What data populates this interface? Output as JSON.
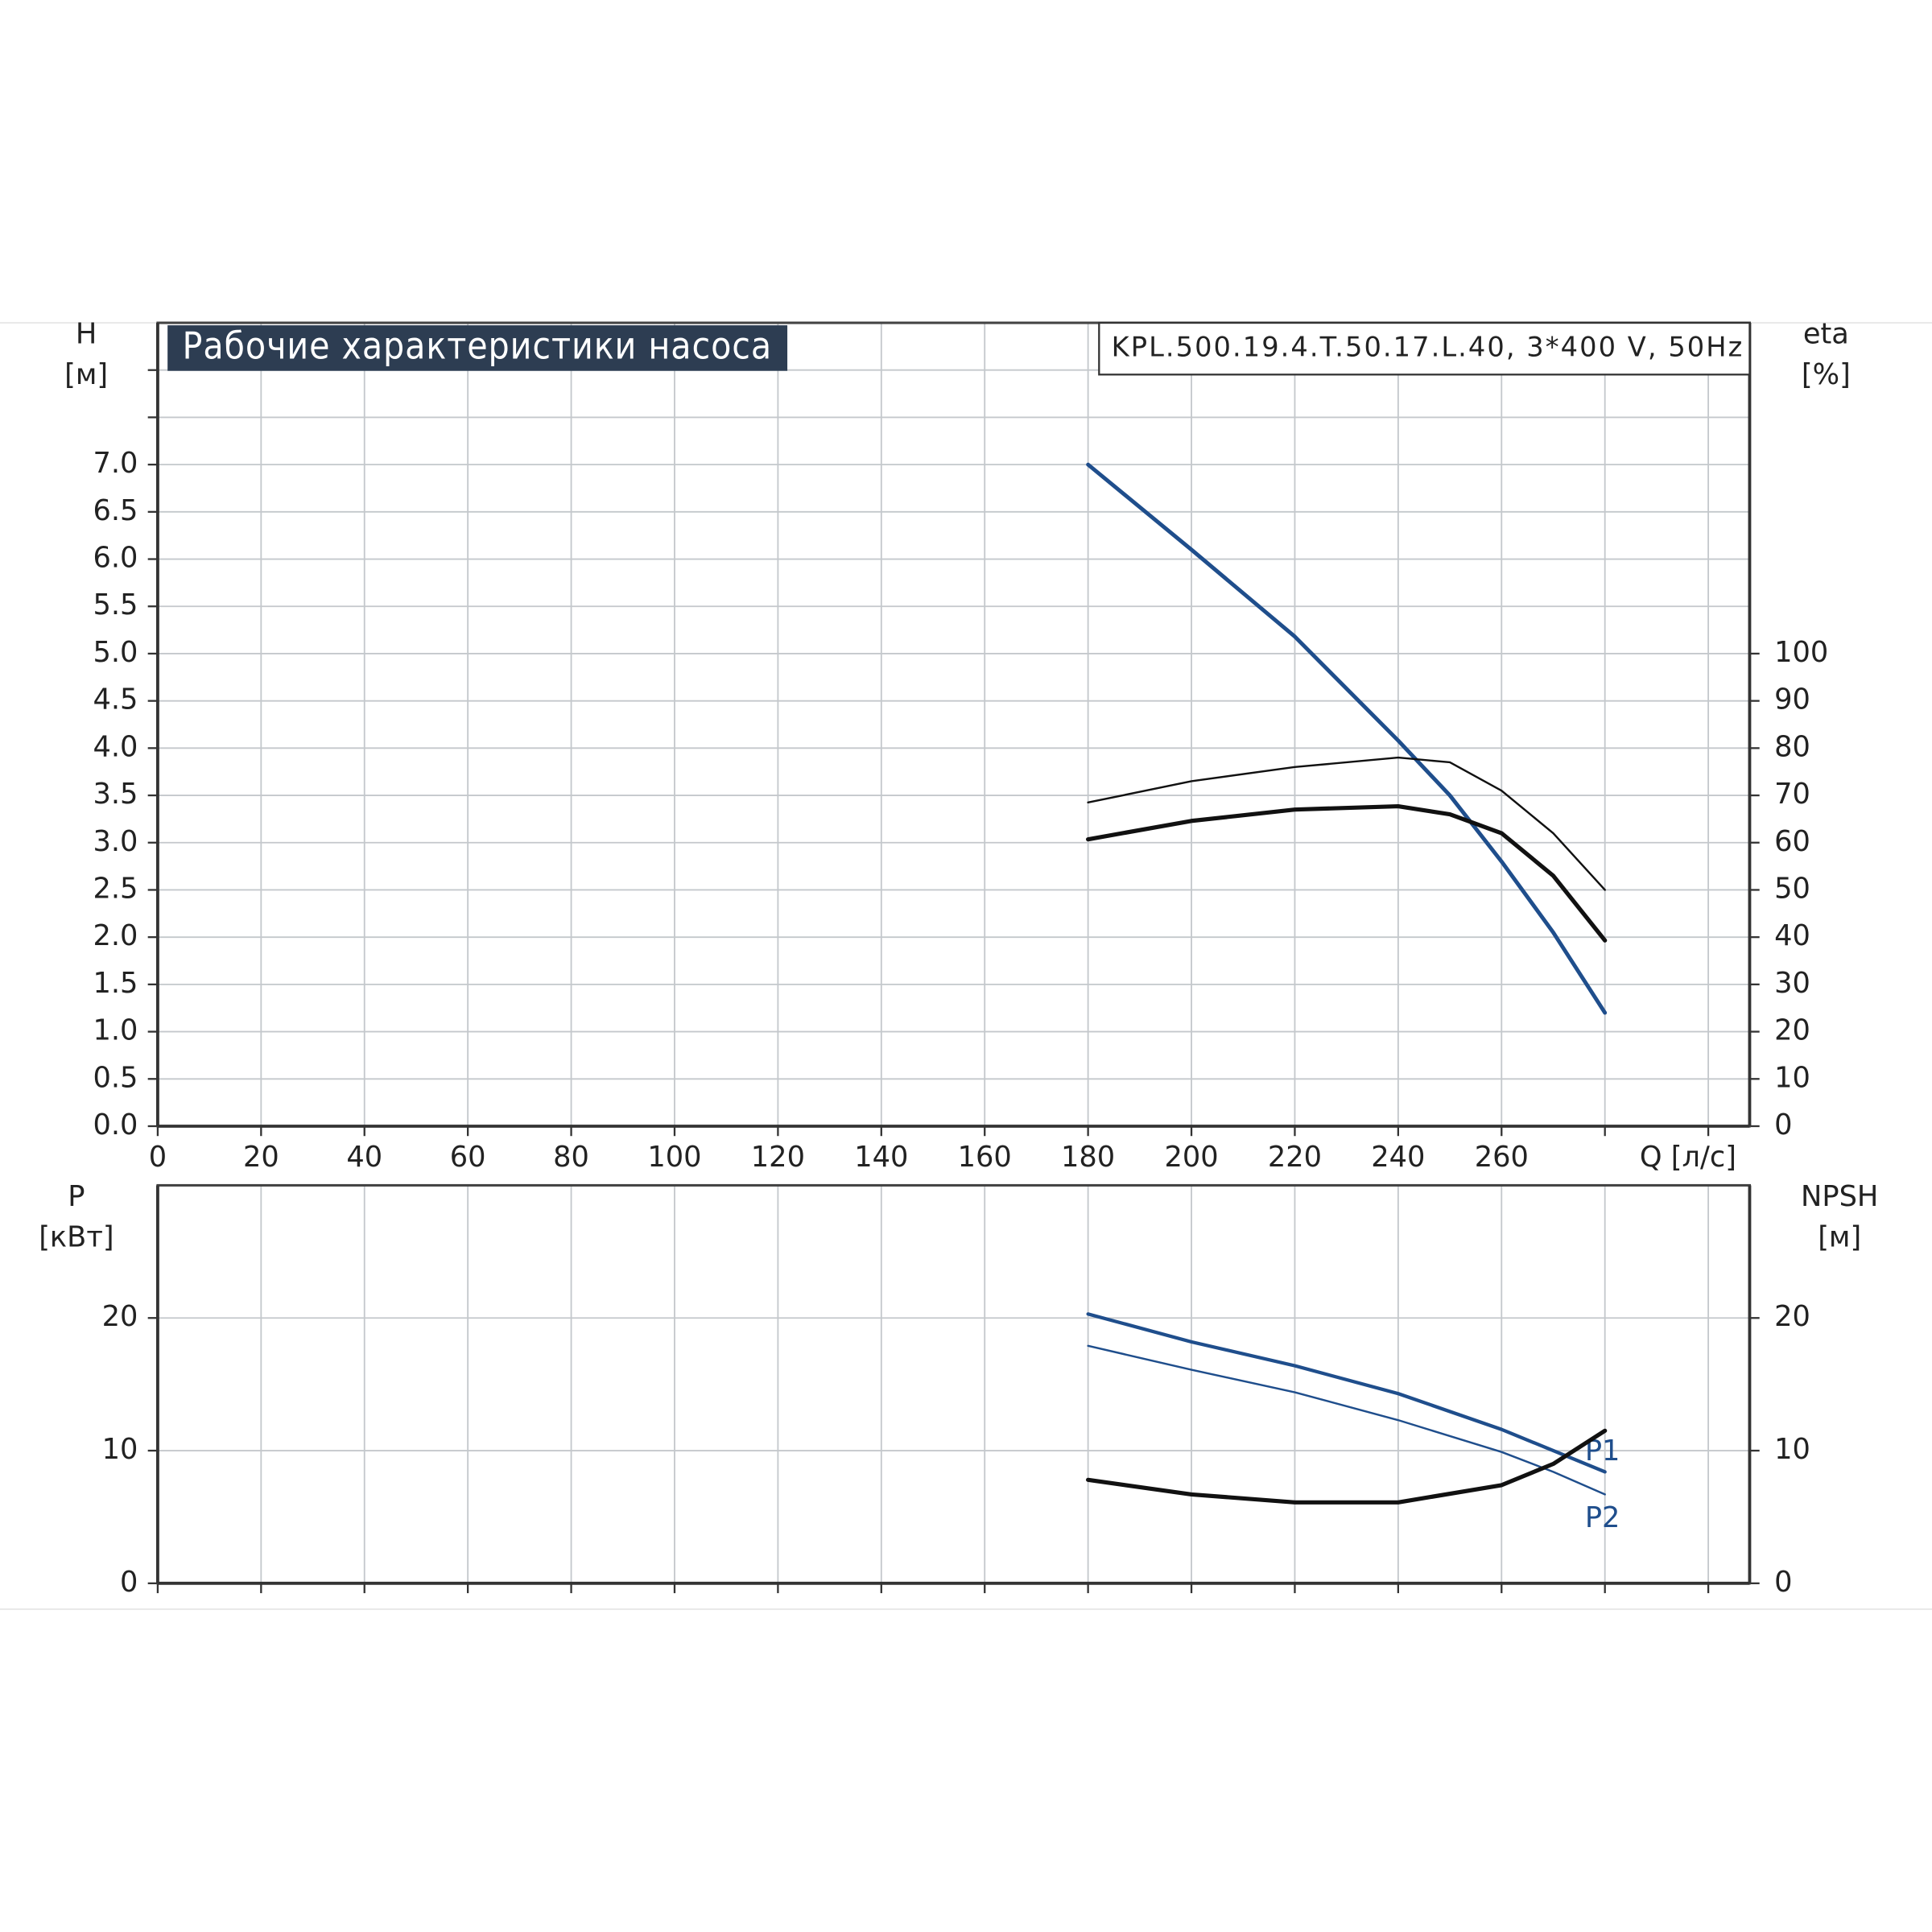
{
  "chart_data": [
    {
      "type": "line",
      "title": "Рабочие характеристики насоса",
      "subtitle": "KPL.500.19.4.T.50.17.L.40, 3*400 V, 50Hz",
      "ylabel": [
        "H",
        "[м]"
      ],
      "y2label": [
        "eta",
        "[%]"
      ],
      "xlabel": "Q [л/с]",
      "xlim": [
        0,
        308
      ],
      "xticks": [
        0,
        20,
        40,
        60,
        80,
        100,
        120,
        140,
        160,
        180,
        200,
        220,
        240,
        260
      ],
      "xgrid": [
        280,
        300
      ],
      "ylim": [
        0,
        8.5
      ],
      "yticks": [
        {
          "value": 0,
          "label": "0.0"
        },
        0.5,
        {
          "value": 1,
          "label": "1.0"
        },
        1.5,
        {
          "value": 2,
          "label": "2.0"
        },
        2.5,
        {
          "value": 3,
          "label": "3.0"
        },
        3.5,
        {
          "value": 4,
          "label": "4.0"
        },
        4.5,
        {
          "value": 5,
          "label": "5.0"
        },
        5.5,
        {
          "value": 6,
          "label": "6.0"
        },
        6.5,
        {
          "value": 7,
          "label": "7.0"
        }
      ],
      "ygrid": [
        7.5,
        8
      ],
      "y2lim": [
        0,
        170
      ],
      "y2ticks": [
        0,
        10,
        20,
        30,
        40,
        50,
        60,
        70,
        80,
        90,
        100
      ],
      "grid": true,
      "x": [
        180,
        200,
        220,
        240,
        250,
        260,
        270,
        280
      ],
      "series": [
        {
          "color": "#1f4e8c",
          "values": [
            7.0,
            6.1,
            5.18,
            4.08,
            3.5,
            2.8,
            2.05,
            1.2
          ]
        },
        {
          "color": "#111111",
          "axis": "y2",
          "values": [
            68.5,
            73,
            76,
            78,
            77,
            71,
            62,
            50
          ]
        },
        {
          "color": "#111111",
          "axis": "y2",
          "values": [
            60.7,
            64.6,
            67,
            67.7,
            66,
            62,
            53,
            39.3
          ]
        }
      ]
    },
    {
      "type": "line",
      "ylabel": [
        "P",
        "[кВт]"
      ],
      "y2label": [
        "NPSH",
        "[м]"
      ],
      "xlim": [
        0,
        308
      ],
      "xgrid": [
        0,
        20,
        40,
        60,
        80,
        100,
        120,
        140,
        160,
        180,
        200,
        220,
        240,
        260,
        280,
        300
      ],
      "ylim": [
        0,
        30
      ],
      "yticks": [
        0,
        10,
        20
      ],
      "y2lim": [
        0,
        30
      ],
      "y2ticks": [
        0,
        10,
        20
      ],
      "grid": true,
      "x": [
        180,
        200,
        220,
        240,
        260,
        270,
        280
      ],
      "series": [
        {
          "name": "P1",
          "color": "#1f4e8c",
          "values": [
            20.3,
            18.2,
            16.4,
            14.3,
            11.6,
            10.0,
            8.4
          ]
        },
        {
          "name": "P2",
          "color": "#1f4e8c",
          "values": [
            17.9,
            16.1,
            14.4,
            12.3,
            9.9,
            8.4,
            6.7
          ]
        },
        {
          "color": "#111111",
          "axis": "y2",
          "values": [
            7.8,
            6.7,
            6.1,
            6.1,
            7.4,
            9.0,
            11.5
          ]
        }
      ]
    }
  ]
}
